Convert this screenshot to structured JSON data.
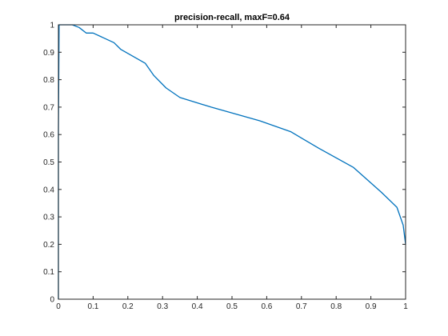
{
  "chart_data": {
    "type": "line",
    "title": "precision-recall, maxF=0.64",
    "xlabel": "",
    "ylabel": "",
    "xlim": [
      0,
      1
    ],
    "ylim": [
      0,
      1
    ],
    "x_ticks": [
      0,
      0.1,
      0.2,
      0.3,
      0.4,
      0.5,
      0.6,
      0.7,
      0.8,
      0.9,
      1
    ],
    "y_ticks": [
      0,
      0.1,
      0.2,
      0.3,
      0.4,
      0.5,
      0.6,
      0.7,
      0.8,
      0.9,
      1
    ],
    "x_tick_labels": [
      "0",
      "0.1",
      "0.2",
      "0.3",
      "0.4",
      "0.5",
      "0.6",
      "0.7",
      "0.8",
      "0.9",
      "1"
    ],
    "y_tick_labels": [
      "0",
      "0.1",
      "0.2",
      "0.3",
      "0.4",
      "0.5",
      "0.6",
      "0.7",
      "0.8",
      "0.9",
      "1"
    ],
    "grid": false,
    "series": [
      {
        "color": "#0072BD",
        "x": [
          0.0,
          0.0,
          0.002,
          0.01,
          0.04,
          0.06,
          0.08,
          0.1,
          0.16,
          0.18,
          0.25,
          0.275,
          0.31,
          0.35,
          0.44,
          0.58,
          0.67,
          0.75,
          0.85,
          0.93,
          0.975,
          0.993,
          1.0
        ],
        "y": [
          0.0,
          0.6,
          1.0,
          1.0,
          1.0,
          0.99,
          0.97,
          0.97,
          0.935,
          0.91,
          0.86,
          0.815,
          0.77,
          0.735,
          0.7,
          0.65,
          0.61,
          0.55,
          0.48,
          0.39,
          0.335,
          0.27,
          0.2
        ]
      }
    ]
  }
}
